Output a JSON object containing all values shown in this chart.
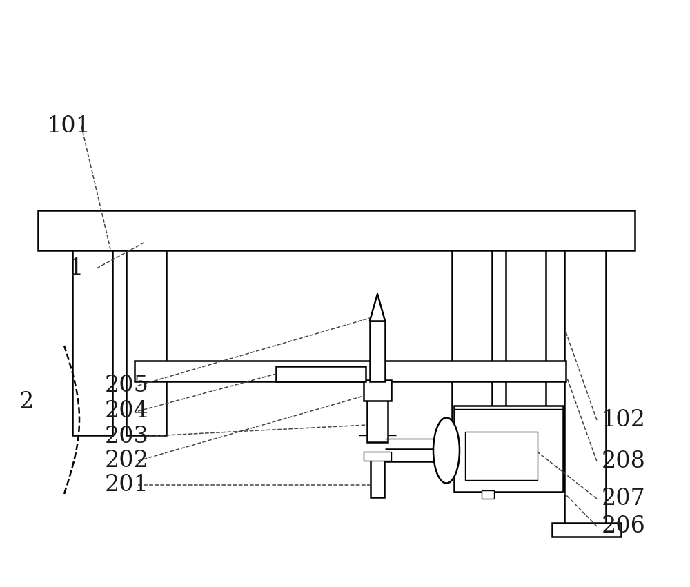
{
  "bg_color": "#ffffff",
  "line_color": "#000000",
  "figsize": [
    10.0,
    8.51
  ],
  "dpi": 100
}
